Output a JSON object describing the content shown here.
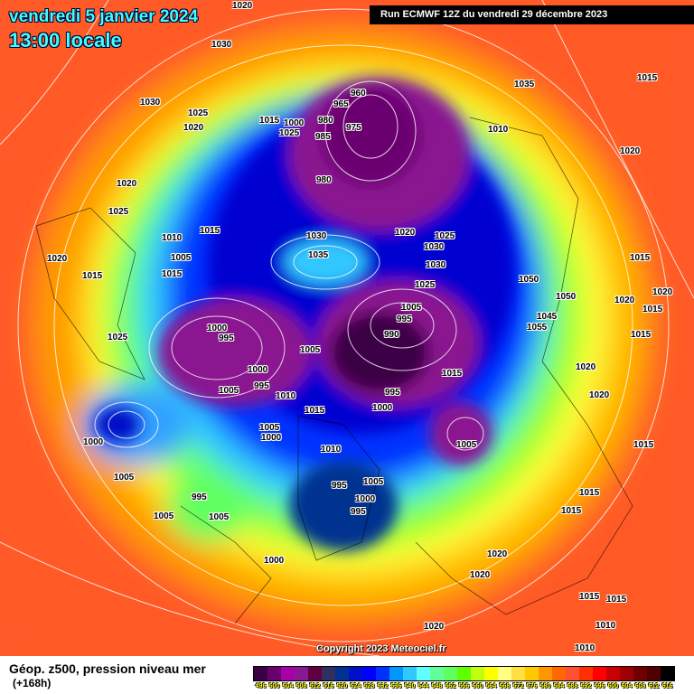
{
  "header": {
    "valid_date": "vendredi 5 janvier 2024",
    "valid_time": "13:00 locale",
    "run_info": "Run ECMWF 12Z du vendredi 29 décembre 2023"
  },
  "map": {
    "copyright": "Copyright 2023 Meteociel.fr",
    "pressure_labels": [
      "1020",
      "1030",
      "1030",
      "1025",
      "1015",
      "1025",
      "1020",
      "1015",
      "1035",
      "1000",
      "985",
      "960",
      "965",
      "980",
      "975",
      "1010",
      "1020",
      "1020",
      "980",
      "1025",
      "1015",
      "1010",
      "1005",
      "1015",
      "1020",
      "1030",
      "1035",
      "1030",
      "1025",
      "1030",
      "1025",
      "1050",
      "1050",
      "1015",
      "1045",
      "1055",
      "1020",
      "1020",
      "1020",
      "1000",
      "995",
      "1005",
      "990",
      "995",
      "1005",
      "1000",
      "995",
      "1005",
      "1015",
      "1010",
      "1015",
      "1000",
      "995",
      "1020",
      "1025",
      "1015",
      "1005",
      "1000",
      "1005",
      "1010",
      "1005",
      "995",
      "1000",
      "995",
      "1005",
      "1000",
      "1005",
      "995",
      "1005",
      "1000",
      "1015",
      "1015",
      "1015",
      "1020",
      "1020",
      "1015",
      "1010",
      "1020",
      "1010",
      "1015",
      "1015",
      "1020",
      "1015"
    ]
  },
  "footer": {
    "title": "Géop. z500, pression niveau mer",
    "subtitle": "(+168h)",
    "scale_labels": [
      "496",
      "500",
      "504",
      "508",
      "512",
      "516",
      "520",
      "524",
      "528",
      "532",
      "536",
      "540",
      "544",
      "548",
      "552",
      "556",
      "560",
      "564",
      "568",
      "572",
      "576",
      "580",
      "584",
      "588",
      "592",
      "596",
      "600",
      "604",
      "608",
      "612",
      "616"
    ],
    "scale_colors": [
      "#3a0044",
      "#6a0070",
      "#a800a8",
      "#8a1890",
      "#600040",
      "#303060",
      "#003090",
      "#0010c8",
      "#0000ff",
      "#0030ff",
      "#0098ff",
      "#30c8ff",
      "#60ffff",
      "#60ff98",
      "#60ff60",
      "#60ff00",
      "#c0ff10",
      "#ffff00",
      "#ffff80",
      "#ffe040",
      "#ffc800",
      "#ff9800",
      "#ff6800",
      "#ff5030",
      "#ff3000",
      "#ff0000",
      "#c80000",
      "#a00000",
      "#700000",
      "#500000",
      "#000000"
    ]
  }
}
